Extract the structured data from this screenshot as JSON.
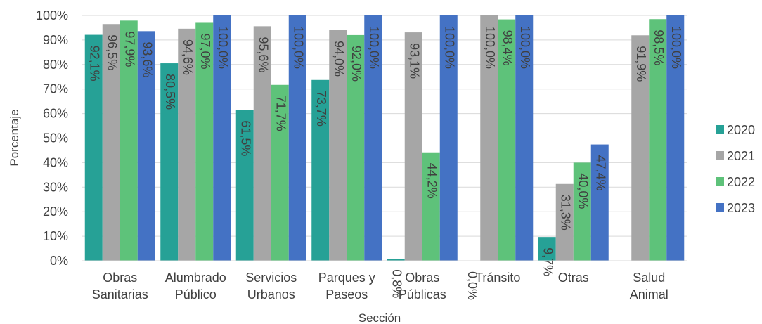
{
  "chart_data": {
    "type": "bar",
    "xlabel": "Sección",
    "ylabel": "Porcentaje",
    "ylim": [
      0,
      100
    ],
    "yticks": [
      "0%",
      "10%",
      "20%",
      "30%",
      "40%",
      "50%",
      "60%",
      "70%",
      "80%",
      "90%",
      "100%"
    ],
    "grid": true,
    "legend_position": "right",
    "categories": [
      [
        "Obras",
        "Sanitarias"
      ],
      [
        "Alumbrado",
        "Público"
      ],
      [
        "Servicios",
        "Urbanos"
      ],
      [
        "Parques y",
        "Paseos"
      ],
      [
        "Obras",
        "Públicas"
      ],
      [
        "Tránsito"
      ],
      [
        "Otras"
      ],
      [
        "Salud",
        "Animal"
      ]
    ],
    "series": [
      {
        "name": "2020",
        "color": "#26a196",
        "values": [
          92.1,
          80.5,
          61.5,
          73.7,
          0.8,
          0.0,
          9.7,
          null
        ],
        "labels": [
          "92,1%",
          "80,5%",
          "61,5%",
          "73,7%",
          "0,8%",
          "0,0%",
          "9,7%",
          null
        ]
      },
      {
        "name": "2021",
        "color": "#a6a6a6",
        "values": [
          96.5,
          94.6,
          95.6,
          94.0,
          93.1,
          100.0,
          31.3,
          91.9
        ],
        "labels": [
          "96,5%",
          "94,6%",
          "95,6%",
          "94,0%",
          "93,1%",
          "100,0%",
          "31,3%",
          "91,9%"
        ]
      },
      {
        "name": "2022",
        "color": "#5ec27a",
        "values": [
          97.9,
          97.0,
          71.7,
          92.0,
          44.2,
          98.4,
          40.0,
          98.5
        ],
        "labels": [
          "97,9%",
          "97,0%",
          "71,7%",
          "92,0%",
          "44,2%",
          "98,4%",
          "40,0%",
          "98,5%"
        ]
      },
      {
        "name": "2023",
        "color": "#4472c4",
        "values": [
          93.6,
          100.0,
          100.0,
          100.0,
          100.0,
          100.0,
          47.4,
          100.0
        ],
        "labels": [
          "93,6%",
          "100,0%",
          "100,0%",
          "100,0%",
          "100,0%",
          "100,0%",
          "47,4%",
          "100,0%"
        ]
      }
    ]
  }
}
